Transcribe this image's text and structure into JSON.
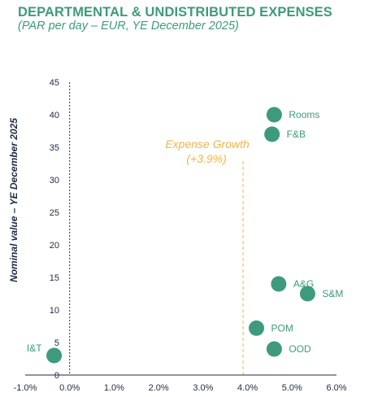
{
  "header": {
    "title": "DEPARTMENTAL & UNDISTRIBUTED EXPENSES",
    "subtitle": "(PAR per day – EUR, YE December 2025)"
  },
  "colors": {
    "accent": "#3e9a7c",
    "annotation": "#f0b545",
    "axis": "#1f2a44"
  },
  "chart_data": {
    "type": "scatter",
    "ylabel": "Nominal value – YE December 2025",
    "xlim": [
      -1.0,
      6.0
    ],
    "ylim": [
      0,
      45
    ],
    "x_ticks": [
      "-1.0%",
      "0.0%",
      "1.0%",
      "2.0%",
      "3.0%",
      "4.0%",
      "5.0%",
      "6.0%"
    ],
    "y_ticks": [
      "0",
      "5",
      "10",
      "15",
      "20",
      "25",
      "30",
      "35",
      "40",
      "45"
    ],
    "points": [
      {
        "label": "Rooms",
        "x": 4.6,
        "y": 40.0
      },
      {
        "label": "F&B",
        "x": 4.55,
        "y": 37.0
      },
      {
        "label": "A&G",
        "x": 4.7,
        "y": 14.0
      },
      {
        "label": "S&M",
        "x": 5.35,
        "y": 12.5
      },
      {
        "label": "POM",
        "x": 4.2,
        "y": 7.2
      },
      {
        "label": "OOD",
        "x": 4.6,
        "y": 4.0
      },
      {
        "label": "I&T",
        "x": -0.35,
        "y": 3.0
      }
    ],
    "reference_line": {
      "x": 3.9,
      "label_line1": "Expense Growth",
      "label_line2": "(+3.9%)"
    }
  }
}
